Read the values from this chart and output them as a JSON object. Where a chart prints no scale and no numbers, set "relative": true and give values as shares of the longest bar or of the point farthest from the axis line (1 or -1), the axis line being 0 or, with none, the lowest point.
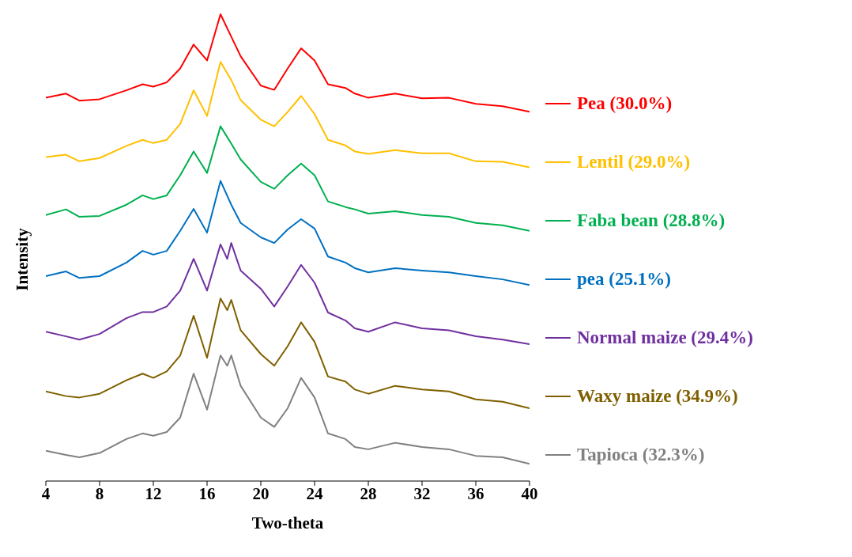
{
  "chart_data": {
    "type": "line",
    "relative": true,
    "xlabel": "Two-theta",
    "ylabel": "Intensity",
    "xlim": [
      4,
      40
    ],
    "xticks": [
      4,
      8,
      12,
      16,
      20,
      24,
      28,
      32,
      36,
      40
    ],
    "legend": "right",
    "marker": "none",
    "line_style": "solid",
    "grid": false,
    "series": [
      {
        "name": "Pea (30.0%)",
        "color": "#ff0000",
        "x": [
          4,
          5.5,
          6.5,
          8,
          10,
          11.2,
          12,
          13,
          14,
          15,
          16,
          17,
          17.8,
          18.5,
          20,
          21,
          22,
          23,
          24,
          25,
          26.3,
          27,
          28,
          30,
          32,
          34,
          36,
          38,
          40
        ],
        "values": [
          0.821,
          0.83,
          0.815,
          0.818,
          0.837,
          0.85,
          0.845,
          0.854,
          0.884,
          0.935,
          0.901,
          1,
          0.952,
          0.91,
          0.847,
          0.838,
          0.884,
          0.927,
          0.901,
          0.85,
          0.842,
          0.83,
          0.821,
          0.83,
          0.82,
          0.821,
          0.808,
          0.803,
          0.791
        ]
      },
      {
        "name": "Lentil (29.0%)",
        "color": "#ffc000",
        "x": [
          4,
          5.5,
          6.5,
          8,
          10,
          11.2,
          12,
          13,
          14,
          15,
          16,
          17,
          17.8,
          18.5,
          20,
          21,
          22,
          23,
          24,
          25,
          26.3,
          27,
          28,
          30,
          32,
          34,
          36,
          38,
          40
        ],
        "values": [
          0.694,
          0.699,
          0.685,
          0.692,
          0.718,
          0.731,
          0.724,
          0.731,
          0.765,
          0.837,
          0.782,
          0.898,
          0.859,
          0.816,
          0.774,
          0.76,
          0.791,
          0.825,
          0.786,
          0.731,
          0.719,
          0.706,
          0.701,
          0.709,
          0.702,
          0.702,
          0.685,
          0.684,
          0.672
        ]
      },
      {
        "name": "Faba bean (28.8%)",
        "color": "#00b050",
        "x": [
          4,
          5.5,
          6.5,
          8,
          10,
          11.2,
          12,
          13,
          14,
          15,
          16,
          17,
          17.8,
          18.5,
          20,
          21,
          22,
          23,
          24,
          25,
          26.3,
          27,
          28,
          30,
          32,
          34,
          36,
          38,
          40
        ],
        "values": [
          0.57,
          0.582,
          0.566,
          0.568,
          0.592,
          0.612,
          0.604,
          0.612,
          0.655,
          0.706,
          0.66,
          0.76,
          0.723,
          0.689,
          0.641,
          0.626,
          0.655,
          0.68,
          0.655,
          0.599,
          0.587,
          0.582,
          0.573,
          0.578,
          0.57,
          0.566,
          0.553,
          0.548,
          0.536
        ]
      },
      {
        "name": "pea (25.1%)",
        "color": "#0070c0",
        "x": [
          4,
          5.5,
          6.5,
          8,
          10,
          11.2,
          12,
          13,
          14,
          15,
          16,
          17,
          17.8,
          18.5,
          20,
          21,
          22,
          23,
          24,
          25,
          26.3,
          27,
          28,
          30,
          32,
          34,
          36,
          38,
          40
        ],
        "values": [
          0.439,
          0.449,
          0.435,
          0.439,
          0.468,
          0.493,
          0.485,
          0.493,
          0.536,
          0.583,
          0.532,
          0.643,
          0.592,
          0.553,
          0.522,
          0.51,
          0.539,
          0.561,
          0.541,
          0.481,
          0.468,
          0.456,
          0.447,
          0.456,
          0.451,
          0.447,
          0.439,
          0.432,
          0.42
        ]
      },
      {
        "name": "Normal maize (29.4%)",
        "color": "#7030a0",
        "x": [
          4,
          5.5,
          6.5,
          8,
          10,
          11.2,
          12,
          13,
          14,
          15,
          16,
          17,
          17.5,
          17.8,
          18.5,
          20,
          21,
          22,
          23,
          24,
          25,
          26.3,
          27,
          28,
          30,
          32,
          34,
          36,
          38,
          40
        ],
        "values": [
          0.32,
          0.31,
          0.303,
          0.315,
          0.349,
          0.362,
          0.362,
          0.374,
          0.408,
          0.476,
          0.408,
          0.507,
          0.476,
          0.51,
          0.451,
          0.412,
          0.374,
          0.417,
          0.463,
          0.425,
          0.361,
          0.344,
          0.327,
          0.32,
          0.34,
          0.327,
          0.323,
          0.31,
          0.303,
          0.293
        ]
      },
      {
        "name": "Waxy maize (34.9%)",
        "color": "#7f6000",
        "x": [
          4,
          5.5,
          6.5,
          8,
          10,
          11.2,
          12,
          13,
          14,
          15,
          16,
          17,
          17.5,
          17.8,
          18.5,
          20,
          21,
          22,
          23,
          24,
          25,
          26.3,
          27,
          28,
          30,
          32,
          34,
          36,
          38,
          40
        ],
        "values": [
          0.192,
          0.182,
          0.179,
          0.187,
          0.216,
          0.23,
          0.221,
          0.235,
          0.269,
          0.354,
          0.264,
          0.391,
          0.366,
          0.388,
          0.323,
          0.272,
          0.247,
          0.289,
          0.34,
          0.298,
          0.224,
          0.213,
          0.196,
          0.187,
          0.204,
          0.196,
          0.192,
          0.175,
          0.17,
          0.156
        ]
      },
      {
        "name": "Tapioca (32.3%)",
        "color": "#808080",
        "x": [
          4,
          5.5,
          6.5,
          8,
          10,
          11.2,
          12,
          13,
          14,
          15,
          16,
          17,
          17.5,
          17.8,
          18.5,
          20,
          21,
          22,
          23,
          24,
          25,
          26.3,
          27,
          28,
          30,
          32,
          34,
          36,
          38,
          40
        ],
        "values": [
          0.065,
          0.056,
          0.051,
          0.06,
          0.09,
          0.102,
          0.097,
          0.105,
          0.136,
          0.23,
          0.153,
          0.269,
          0.247,
          0.269,
          0.204,
          0.136,
          0.116,
          0.156,
          0.221,
          0.179,
          0.102,
          0.09,
          0.073,
          0.068,
          0.082,
          0.073,
          0.068,
          0.054,
          0.051,
          0.037
        ]
      }
    ]
  }
}
